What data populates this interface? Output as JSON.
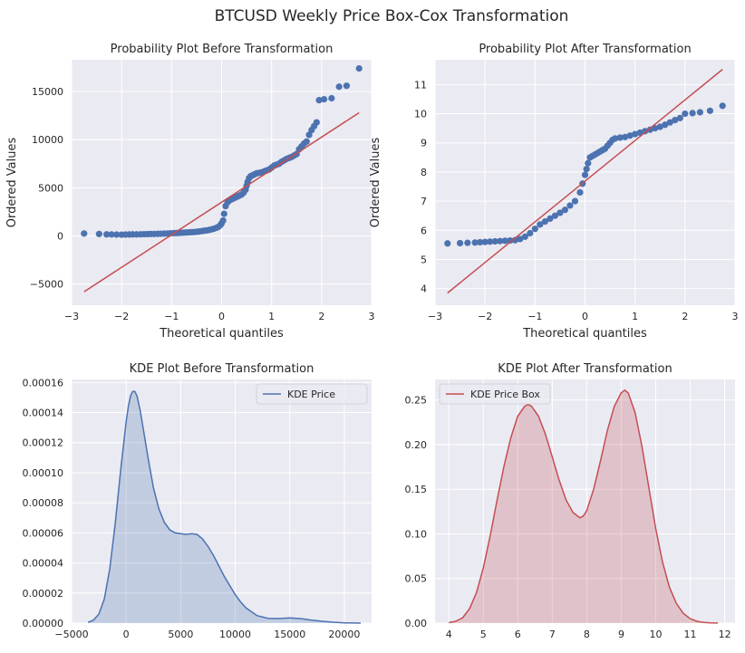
{
  "figure": {
    "title": "BTCUSD Weekly Price Box-Cox Transformation"
  },
  "chart_data": [
    {
      "type": "scatter",
      "title": "Probability Plot Before Transformation",
      "xlabel": "Theoretical quantiles",
      "ylabel": "Ordered Values",
      "xlim": [
        -3,
        3
      ],
      "ylim": [
        -7200,
        18300
      ],
      "xticks": [
        -3,
        -2,
        -1,
        0,
        1,
        2,
        3
      ],
      "xtick_labels": [
        "−3",
        "−2",
        "−1",
        "0",
        "1",
        "2",
        "3"
      ],
      "yticks": [
        -5000,
        0,
        5000,
        10000,
        15000
      ],
      "ytick_labels": [
        "−5000",
        "0",
        "5000",
        "10000",
        "15000"
      ],
      "grid": true,
      "marker_color": "#4c72b0",
      "line_color": "#c44e52",
      "points": [
        [
          -2.75,
          250
        ],
        [
          -2.45,
          200
        ],
        [
          -2.3,
          160
        ],
        [
          -2.2,
          150
        ],
        [
          -2.1,
          140
        ],
        [
          -2.0,
          130
        ],
        [
          -1.92,
          140
        ],
        [
          -1.85,
          150
        ],
        [
          -1.78,
          160
        ],
        [
          -1.7,
          160
        ],
        [
          -1.62,
          170
        ],
        [
          -1.55,
          180
        ],
        [
          -1.48,
          190
        ],
        [
          -1.42,
          200
        ],
        [
          -1.35,
          200
        ],
        [
          -1.28,
          210
        ],
        [
          -1.22,
          230
        ],
        [
          -1.15,
          240
        ],
        [
          -1.08,
          250
        ],
        [
          -1.02,
          270
        ],
        [
          -0.95,
          290
        ],
        [
          -0.9,
          300
        ],
        [
          -0.85,
          310
        ],
        [
          -0.8,
          330
        ],
        [
          -0.75,
          340
        ],
        [
          -0.7,
          350
        ],
        [
          -0.65,
          370
        ],
        [
          -0.6,
          390
        ],
        [
          -0.55,
          400
        ],
        [
          -0.5,
          430
        ],
        [
          -0.45,
          460
        ],
        [
          -0.4,
          500
        ],
        [
          -0.35,
          540
        ],
        [
          -0.3,
          570
        ],
        [
          -0.25,
          620
        ],
        [
          -0.2,
          680
        ],
        [
          -0.15,
          750
        ],
        [
          -0.1,
          850
        ],
        [
          -0.06,
          950
        ],
        [
          -0.02,
          1150
        ],
        [
          0.0,
          1300
        ],
        [
          0.03,
          1600
        ],
        [
          0.05,
          2300
        ],
        [
          0.08,
          3100
        ],
        [
          0.12,
          3500
        ],
        [
          0.16,
          3700
        ],
        [
          0.2,
          3800
        ],
        [
          0.24,
          3900
        ],
        [
          0.28,
          4000
        ],
        [
          0.32,
          4100
        ],
        [
          0.36,
          4200
        ],
        [
          0.4,
          4300
        ],
        [
          0.44,
          4500
        ],
        [
          0.48,
          4800
        ],
        [
          0.5,
          5200
        ],
        [
          0.52,
          5600
        ],
        [
          0.55,
          6000
        ],
        [
          0.58,
          6200
        ],
        [
          0.62,
          6300
        ],
        [
          0.66,
          6400
        ],
        [
          0.7,
          6500
        ],
        [
          0.75,
          6550
        ],
        [
          0.8,
          6600
        ],
        [
          0.85,
          6700
        ],
        [
          0.9,
          6800
        ],
        [
          0.95,
          6900
        ],
        [
          1.0,
          7100
        ],
        [
          1.05,
          7300
        ],
        [
          1.1,
          7400
        ],
        [
          1.15,
          7500
        ],
        [
          1.2,
          7700
        ],
        [
          1.25,
          7850
        ],
        [
          1.3,
          8000
        ],
        [
          1.35,
          8100
        ],
        [
          1.4,
          8200
        ],
        [
          1.45,
          8350
        ],
        [
          1.5,
          8500
        ],
        [
          1.55,
          9000
        ],
        [
          1.6,
          9300
        ],
        [
          1.65,
          9600
        ],
        [
          1.7,
          9800
        ],
        [
          1.75,
          10500
        ],
        [
          1.8,
          11000
        ],
        [
          1.85,
          11400
        ],
        [
          1.9,
          11800
        ],
        [
          1.95,
          14100
        ],
        [
          2.05,
          14200
        ],
        [
          2.2,
          14300
        ],
        [
          2.35,
          15500
        ],
        [
          2.5,
          15600
        ],
        [
          2.75,
          17400
        ]
      ],
      "fit_line": [
        [
          -2.75,
          -5800
        ],
        [
          2.75,
          12800
        ]
      ]
    },
    {
      "type": "scatter",
      "title": "Probability Plot After Transformation",
      "xlabel": "Theoretical quantiles",
      "ylabel": "Ordered Values",
      "xlim": [
        -3,
        3
      ],
      "ylim": [
        3.43,
        11.85
      ],
      "xticks": [
        -3,
        -2,
        -1,
        0,
        1,
        2,
        3
      ],
      "xtick_labels": [
        "−3",
        "−2",
        "−1",
        "0",
        "1",
        "2",
        "3"
      ],
      "yticks": [
        4,
        5,
        6,
        7,
        8,
        9,
        10,
        11
      ],
      "ytick_labels": [
        "4",
        "5",
        "6",
        "7",
        "8",
        "9",
        "10",
        "11"
      ],
      "grid": true,
      "marker_color": "#4c72b0",
      "line_color": "#c44e52",
      "points": [
        [
          -2.75,
          5.55
        ],
        [
          -2.5,
          5.56
        ],
        [
          -2.35,
          5.57
        ],
        [
          -2.2,
          5.58
        ],
        [
          -2.1,
          5.59
        ],
        [
          -2.0,
          5.6
        ],
        [
          -1.9,
          5.61
        ],
        [
          -1.8,
          5.62
        ],
        [
          -1.7,
          5.63
        ],
        [
          -1.6,
          5.64
        ],
        [
          -1.5,
          5.65
        ],
        [
          -1.4,
          5.66
        ],
        [
          -1.3,
          5.7
        ],
        [
          -1.2,
          5.78
        ],
        [
          -1.1,
          5.9
        ],
        [
          -1.0,
          6.05
        ],
        [
          -0.9,
          6.2
        ],
        [
          -0.8,
          6.3
        ],
        [
          -0.7,
          6.4
        ],
        [
          -0.6,
          6.5
        ],
        [
          -0.5,
          6.6
        ],
        [
          -0.4,
          6.7
        ],
        [
          -0.3,
          6.85
        ],
        [
          -0.2,
          7.0
        ],
        [
          -0.1,
          7.3
        ],
        [
          -0.05,
          7.6
        ],
        [
          0.0,
          7.9
        ],
        [
          0.03,
          8.1
        ],
        [
          0.06,
          8.3
        ],
        [
          0.1,
          8.5
        ],
        [
          0.15,
          8.55
        ],
        [
          0.2,
          8.6
        ],
        [
          0.25,
          8.65
        ],
        [
          0.3,
          8.7
        ],
        [
          0.35,
          8.75
        ],
        [
          0.4,
          8.8
        ],
        [
          0.45,
          8.9
        ],
        [
          0.5,
          9.0
        ],
        [
          0.55,
          9.1
        ],
        [
          0.6,
          9.15
        ],
        [
          0.7,
          9.18
        ],
        [
          0.8,
          9.2
        ],
        [
          0.9,
          9.25
        ],
        [
          1.0,
          9.3
        ],
        [
          1.1,
          9.35
        ],
        [
          1.2,
          9.4
        ],
        [
          1.3,
          9.45
        ],
        [
          1.4,
          9.5
        ],
        [
          1.5,
          9.55
        ],
        [
          1.6,
          9.62
        ],
        [
          1.7,
          9.7
        ],
        [
          1.8,
          9.78
        ],
        [
          1.9,
          9.85
        ],
        [
          2.0,
          10.0
        ],
        [
          2.15,
          10.02
        ],
        [
          2.3,
          10.05
        ],
        [
          2.5,
          10.1
        ],
        [
          2.75,
          10.27
        ]
      ],
      "fit_line": [
        [
          -2.75,
          3.85
        ],
        [
          2.75,
          11.52
        ]
      ]
    },
    {
      "type": "area",
      "title": "KDE Plot Before Transformation",
      "xlabel": "",
      "ylabel": "",
      "xlim": [
        -5000,
        22500
      ],
      "ylim": [
        0,
        0.000162
      ],
      "xticks": [
        -5000,
        0,
        5000,
        10000,
        15000,
        20000
      ],
      "xtick_labels": [
        "−5000",
        "0",
        "5000",
        "10000",
        "15000",
        "20000"
      ],
      "yticks": [
        0,
        2e-05,
        4e-05,
        6e-05,
        8e-05,
        0.0001,
        0.00012,
        0.00014,
        0.00016
      ],
      "ytick_labels": [
        "0.00000",
        "0.00002",
        "0.00004",
        "0.00006",
        "0.00008",
        "0.00010",
        "0.00012",
        "0.00014",
        "0.00016"
      ],
      "grid": true,
      "legend_position": "top-right",
      "series": [
        {
          "name": "KDE Price",
          "color": "#4c72b0",
          "x": [
            -3500,
            -3000,
            -2500,
            -2000,
            -1500,
            -1000,
            -500,
            0,
            200,
            400,
            600,
            800,
            1000,
            1300,
            1600,
            2000,
            2500,
            3000,
            3500,
            4000,
            4500,
            5000,
            5500,
            6000,
            6500,
            7000,
            7500,
            8000,
            8500,
            9000,
            9500,
            10000,
            10500,
            11000,
            12000,
            13000,
            14000,
            15000,
            16000,
            17000,
            18000,
            19000,
            20000,
            21000,
            21500
          ],
          "y": [
            5e-07,
            2e-06,
            6e-06,
            1.6e-05,
            3.6e-05,
            6.6e-05,
            0.000102,
            0.000134,
            0.000144,
            0.000151,
            0.000154,
            0.000154,
            0.000151,
            0.000141,
            0.000128,
            0.00011,
            9e-05,
            7.6e-05,
            6.7e-05,
            6.2e-05,
            6e-05,
            5.95e-05,
            5.9e-05,
            5.95e-05,
            5.9e-05,
            5.6e-05,
            5.1e-05,
            4.5e-05,
            3.8e-05,
            3.1e-05,
            2.5e-05,
            1.9e-05,
            1.4e-05,
            1e-05,
            5e-06,
            3.2e-06,
            3e-06,
            3.5e-06,
            3e-06,
            2e-06,
            1.2e-06,
            6e-07,
            2e-07,
            5e-08,
            0.0
          ]
        }
      ]
    },
    {
      "type": "area",
      "title": "KDE Plot After Transformation",
      "xlabel": "",
      "ylabel": "",
      "xlim": [
        3.6,
        12.3
      ],
      "ylim": [
        0,
        0.273
      ],
      "xticks": [
        4,
        5,
        6,
        7,
        8,
        9,
        10,
        11,
        12
      ],
      "xtick_labels": [
        "4",
        "5",
        "6",
        "7",
        "8",
        "9",
        "10",
        "11",
        "12"
      ],
      "yticks": [
        0,
        0.05,
        0.1,
        0.15,
        0.2,
        0.25
      ],
      "ytick_labels": [
        "0.00",
        "0.05",
        "0.10",
        "0.15",
        "0.20",
        "0.25"
      ],
      "grid": true,
      "legend_position": "top-left",
      "series": [
        {
          "name": "KDE Price Box",
          "color": "#c44e52",
          "x": [
            4.0,
            4.2,
            4.4,
            4.6,
            4.8,
            5.0,
            5.2,
            5.4,
            5.6,
            5.8,
            6.0,
            6.2,
            6.3,
            6.4,
            6.6,
            6.8,
            7.0,
            7.2,
            7.4,
            7.6,
            7.8,
            7.9,
            8.0,
            8.2,
            8.4,
            8.6,
            8.8,
            9.0,
            9.1,
            9.2,
            9.4,
            9.6,
            9.8,
            10.0,
            10.2,
            10.4,
            10.6,
            10.8,
            11.0,
            11.2,
            11.4,
            11.6,
            11.8
          ],
          "y": [
            0.0005,
            0.002,
            0.006,
            0.016,
            0.034,
            0.062,
            0.098,
            0.138,
            0.176,
            0.208,
            0.232,
            0.243,
            0.245,
            0.243,
            0.232,
            0.212,
            0.186,
            0.16,
            0.138,
            0.124,
            0.118,
            0.12,
            0.126,
            0.15,
            0.182,
            0.216,
            0.243,
            0.258,
            0.261,
            0.258,
            0.236,
            0.198,
            0.152,
            0.106,
            0.068,
            0.04,
            0.022,
            0.011,
            0.005,
            0.002,
            0.0008,
            0.0003,
            0.0001
          ]
        }
      ]
    }
  ]
}
